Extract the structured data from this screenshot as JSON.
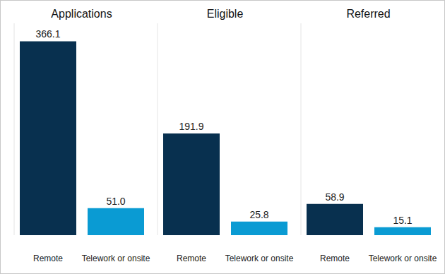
{
  "chart_data": [
    {
      "type": "bar",
      "title": "Applications",
      "categories": [
        "Remote",
        "Telework or onsite"
      ],
      "values": [
        366.1,
        51.0
      ],
      "colors": [
        "#08304f",
        "#0a9bd3"
      ],
      "ylim": [
        0,
        400
      ],
      "data_labels": true,
      "tick_labels": "x"
    },
    {
      "type": "bar",
      "title": "Eligible",
      "categories": [
        "Remote",
        "Telework or onsite"
      ],
      "values": [
        191.9,
        25.8
      ],
      "colors": [
        "#08304f",
        "#0a9bd3"
      ],
      "ylim": [
        0,
        400
      ],
      "data_labels": true,
      "tick_labels": "x"
    },
    {
      "type": "bar",
      "title": "Referred",
      "categories": [
        "Remote",
        "Telework or onsite"
      ],
      "values": [
        58.9,
        15.1
      ],
      "colors": [
        "#08304f",
        "#0a9bd3"
      ],
      "ylim": [
        0,
        400
      ],
      "data_labels": true,
      "tick_labels": "x"
    }
  ]
}
